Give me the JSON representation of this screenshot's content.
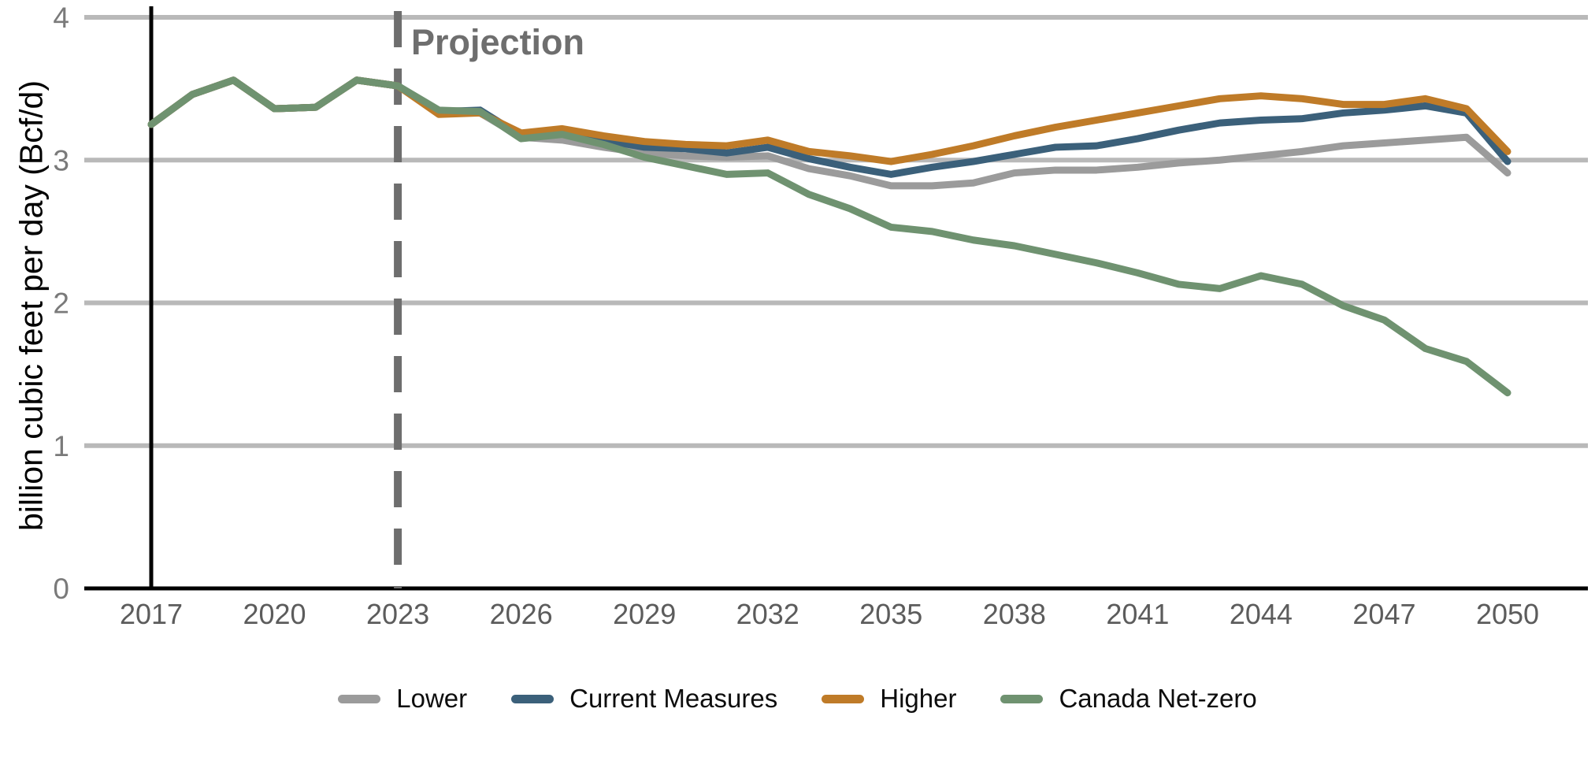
{
  "chart_data": {
    "type": "line",
    "title": "",
    "xlabel": "",
    "ylabel": "billion cubic feet per day (Bcf/d)",
    "ylim": [
      0,
      4
    ],
    "xlim": [
      2015.4,
      2052
    ],
    "y_ticks": [
      0,
      1,
      2,
      3,
      4
    ],
    "x_ticks": [
      2017,
      2020,
      2023,
      2026,
      2029,
      2032,
      2035,
      2038,
      2041,
      2044,
      2047,
      2050
    ],
    "grid": "horizontal",
    "legend_position": "bottom",
    "annotation": {
      "label": "Projection",
      "x": 2023,
      "style": "dashed-vertical-line"
    },
    "history_start_line": {
      "x": 2017,
      "style": "solid-vertical-line"
    },
    "years": [
      2017,
      2018,
      2019,
      2020,
      2021,
      2022,
      2023,
      2024,
      2025,
      2026,
      2027,
      2028,
      2029,
      2030,
      2031,
      2032,
      2033,
      2034,
      2035,
      2036,
      2037,
      2038,
      2039,
      2040,
      2041,
      2042,
      2043,
      2044,
      2045,
      2046,
      2047,
      2048,
      2049,
      2050
    ],
    "series": [
      {
        "name": "Lower",
        "color": "#9b9b9b",
        "values": [
          3.25,
          3.46,
          3.56,
          3.36,
          3.37,
          3.56,
          3.52,
          3.33,
          3.33,
          3.16,
          3.14,
          3.09,
          3.05,
          3.03,
          3.02,
          3.03,
          2.94,
          2.89,
          2.82,
          2.82,
          2.84,
          2.91,
          2.93,
          2.93,
          2.95,
          2.98,
          3.0,
          3.03,
          3.06,
          3.1,
          3.12,
          3.14,
          3.16,
          2.91
        ]
      },
      {
        "name": "Current Measures",
        "color": "#3b607a",
        "values": [
          3.25,
          3.46,
          3.56,
          3.36,
          3.37,
          3.56,
          3.52,
          3.34,
          3.35,
          3.17,
          3.2,
          3.14,
          3.09,
          3.08,
          3.05,
          3.09,
          3.01,
          2.95,
          2.9,
          2.95,
          2.99,
          3.04,
          3.09,
          3.1,
          3.15,
          3.21,
          3.26,
          3.28,
          3.29,
          3.33,
          3.35,
          3.38,
          3.33,
          2.99
        ]
      },
      {
        "name": "Higher",
        "color": "#bf7b28",
        "values": [
          3.25,
          3.46,
          3.56,
          3.36,
          3.37,
          3.56,
          3.52,
          3.32,
          3.33,
          3.19,
          3.22,
          3.17,
          3.13,
          3.11,
          3.1,
          3.14,
          3.06,
          3.03,
          2.99,
          3.04,
          3.1,
          3.17,
          3.23,
          3.28,
          3.33,
          3.38,
          3.43,
          3.45,
          3.43,
          3.39,
          3.39,
          3.43,
          3.36,
          3.06
        ]
      },
      {
        "name": "Canada Net-zero",
        "color": "#6f9270",
        "values": [
          3.25,
          3.46,
          3.56,
          3.36,
          3.37,
          3.56,
          3.52,
          3.35,
          3.34,
          3.15,
          3.18,
          3.11,
          3.02,
          2.96,
          2.9,
          2.91,
          2.76,
          2.66,
          2.53,
          2.5,
          2.44,
          2.4,
          2.34,
          2.28,
          2.21,
          2.13,
          2.1,
          2.19,
          2.13,
          1.98,
          1.88,
          1.68,
          1.59,
          1.37
        ]
      }
    ],
    "colors": {
      "gridline": "#b9b9b9",
      "axis": "#000000",
      "annotation": "#6e6e6e",
      "y_tick_label": "#7a7a7a",
      "x_tick_label": "#5c5c5c"
    }
  }
}
